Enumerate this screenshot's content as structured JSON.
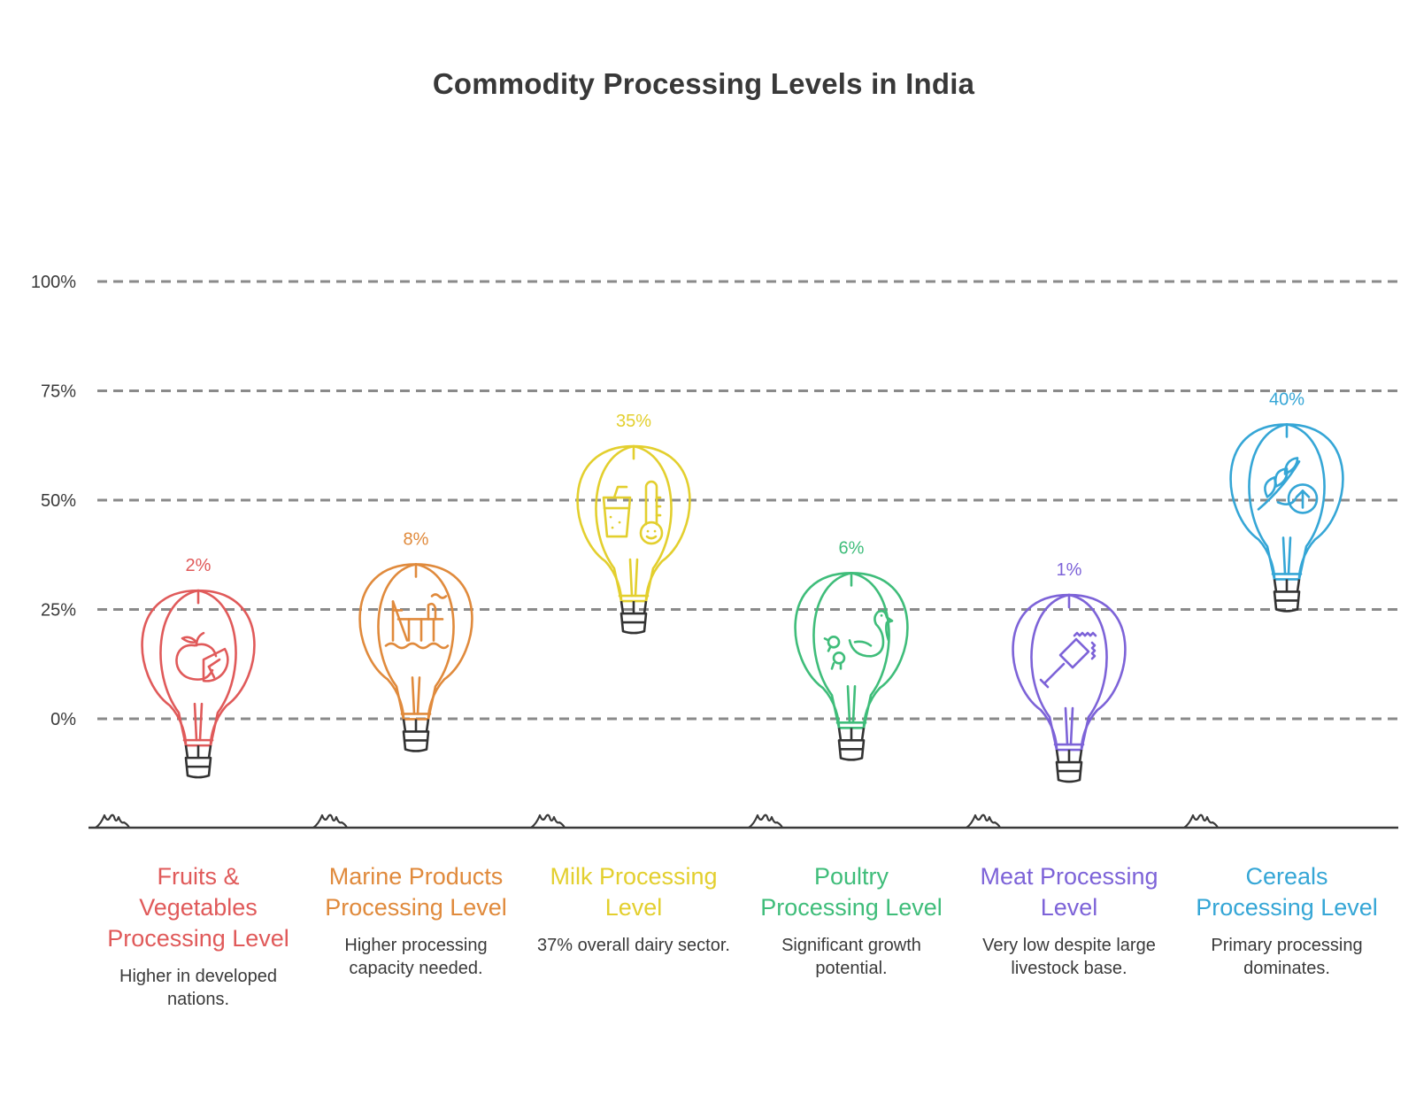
{
  "chart_data": {
    "type": "bar",
    "title": "Commodity Processing Levels in India",
    "ylim": [
      0,
      100
    ],
    "yticks": [
      0,
      25,
      50,
      75,
      100
    ],
    "ytick_labels": [
      "0%",
      "25%",
      "50%",
      "75%",
      "100%"
    ],
    "grid": true,
    "categories": [
      "Fruits & Vegetables Processing Level",
      "Marine Products Processing Level",
      "Milk Processing Level",
      "Poultry Processing Level",
      "Meat Processing Level",
      "Cereals Processing Level"
    ],
    "values": [
      2,
      8,
      35,
      6,
      1,
      40
    ],
    "value_labels": [
      "2%",
      "8%",
      "35%",
      "6%",
      "1%",
      "40%"
    ],
    "descriptions": [
      "Higher in developed nations.",
      "Higher processing capacity needed.",
      "37% overall dairy sector.",
      "Significant growth potential.",
      "Very low despite large livestock base.",
      "Primary processing dominates."
    ],
    "colors": [
      "#e05a5a",
      "#e08a3c",
      "#e3cf2e",
      "#3fbd7a",
      "#7d63d8",
      "#35a6d6"
    ],
    "icons": [
      "fruit-icon",
      "oil-rig-icon",
      "milk-thermometer-icon",
      "poultry-icon",
      "meat-tenderizer-icon",
      "wheat-growth-icon"
    ]
  }
}
